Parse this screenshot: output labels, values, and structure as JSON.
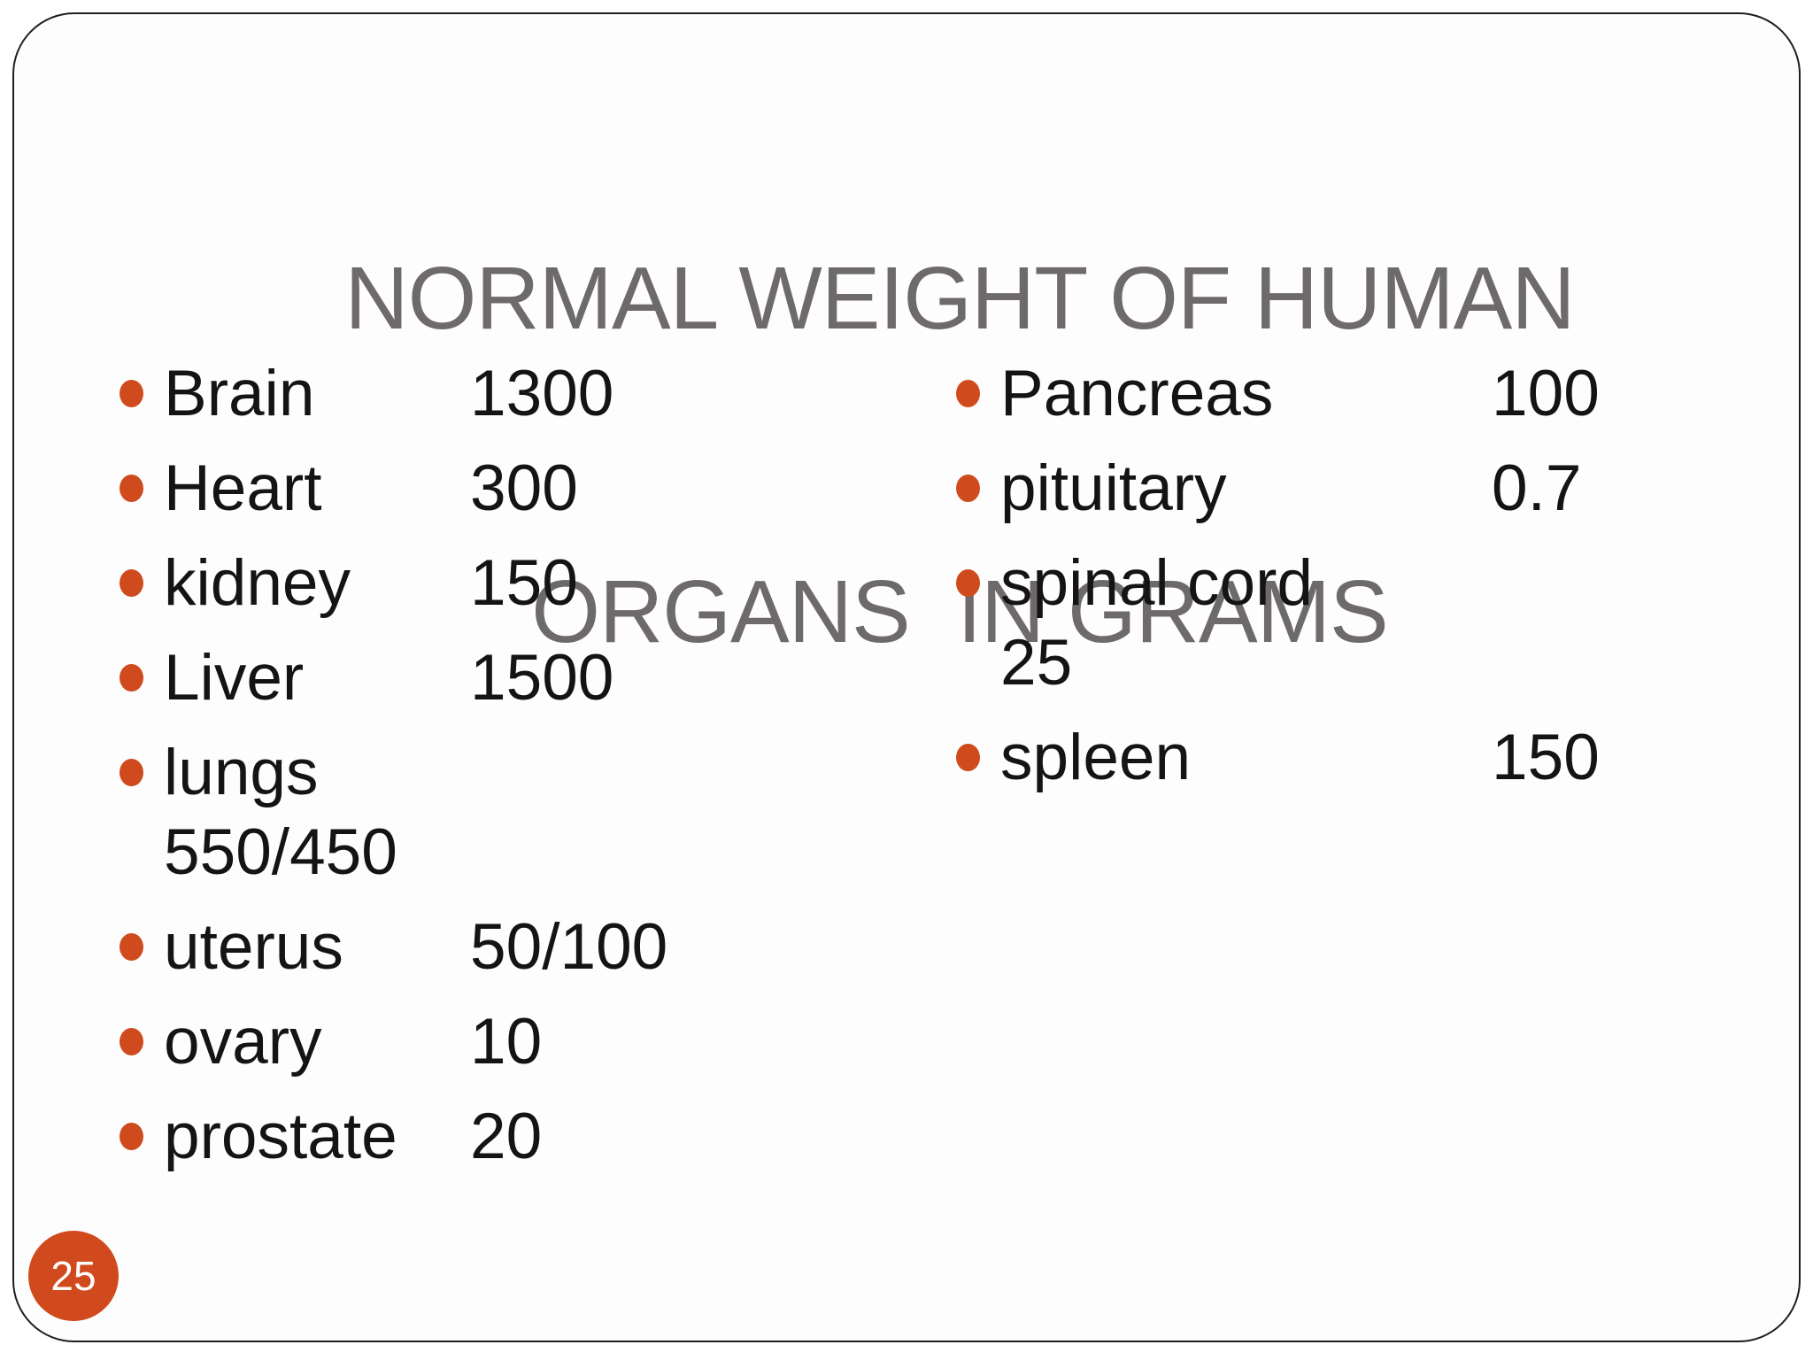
{
  "slide": {
    "title_line1": "NORMAL WEIGHT OF HUMAN",
    "title_line2": "ORGANS  IN GRAMS",
    "page_number": "25",
    "colors": {
      "accent_orange": "#cf4b1d",
      "title_gray": "#6e6a6b",
      "text_black": "#141414",
      "border_black": "#1f1f1f"
    }
  },
  "lists": {
    "left": [
      {
        "label": "Brain",
        "value": "1300"
      },
      {
        "label": "Heart",
        "value": "300"
      },
      {
        "label": "kidney",
        "value": "150"
      },
      {
        "label": "Liver",
        "value": "1500"
      },
      {
        "label": "lungs",
        "value": "550/450"
      },
      {
        "label": "uterus",
        "value": "50/100"
      },
      {
        "label": "ovary",
        "value": "10"
      },
      {
        "label": "prostate",
        "value": "20"
      }
    ],
    "right": [
      {
        "label": "Pancreas",
        "value": "100"
      },
      {
        "label": "pituitary",
        "value": "0.7"
      },
      {
        "label": "spinal cord",
        "value": "25"
      },
      {
        "label": "spleen",
        "value": "150"
      }
    ]
  }
}
